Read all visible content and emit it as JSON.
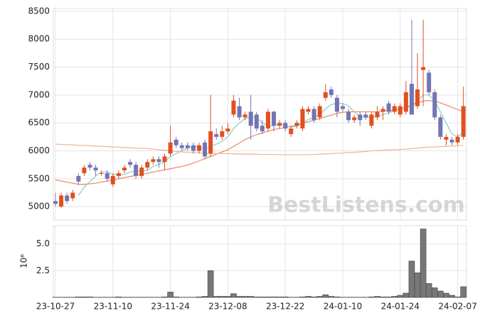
{
  "chart_data": [
    {
      "type": "candlestick",
      "up_color": "#e0501f",
      "down_color": "#7474b4",
      "ylim": [
        4760,
        8550
      ],
      "yticks": [
        5000,
        5500,
        6000,
        6500,
        7000,
        7500,
        8000,
        8500
      ],
      "grid": true,
      "watermark": "BestListens.com",
      "ohlc": [
        [
          5100,
          5250,
          5000,
          5050
        ],
        [
          5000,
          5250,
          4980,
          5200
        ],
        [
          5200,
          5250,
          5050,
          5100
        ],
        [
          5150,
          5300,
          5100,
          5250
        ],
        [
          5550,
          5600,
          5400,
          5450
        ],
        [
          5600,
          5750,
          5550,
          5700
        ],
        [
          5750,
          5800,
          5650,
          5700
        ],
        [
          5700,
          5750,
          5550,
          5650
        ],
        [
          5600,
          5650,
          5550,
          5600
        ],
        [
          5600,
          5650,
          5450,
          5500
        ],
        [
          5400,
          5600,
          5350,
          5550
        ],
        [
          5550,
          5650,
          5500,
          5600
        ],
        [
          5650,
          5750,
          5600,
          5700
        ],
        [
          5800,
          5850,
          5700,
          5750
        ],
        [
          5750,
          5800,
          5500,
          5550
        ],
        [
          5550,
          5750,
          5500,
          5700
        ],
        [
          5700,
          5850,
          5650,
          5800
        ],
        [
          5800,
          5900,
          5750,
          5850
        ],
        [
          5850,
          5900,
          5700,
          5800
        ],
        [
          5800,
          5950,
          5650,
          5900
        ],
        [
          5950,
          6450,
          5900,
          6150
        ],
        [
          6200,
          6250,
          6050,
          6100
        ],
        [
          6100,
          6150,
          6000,
          6050
        ],
        [
          6100,
          6150,
          6000,
          6050
        ],
        [
          6100,
          6150,
          5950,
          6000
        ],
        [
          6000,
          6150,
          5950,
          6100
        ],
        [
          6150,
          6200,
          5850,
          5900
        ],
        [
          5950,
          7000,
          5900,
          6350
        ],
        [
          6300,
          6400,
          6200,
          6250
        ],
        [
          6250,
          6450,
          6200,
          6350
        ],
        [
          6350,
          6500,
          6300,
          6400
        ],
        [
          6650,
          7000,
          6600,
          6900
        ],
        [
          6800,
          6950,
          6550,
          6600
        ],
        [
          6600,
          6700,
          6550,
          6650
        ],
        [
          6700,
          7000,
          6200,
          6450
        ],
        [
          6650,
          6700,
          6350,
          6400
        ],
        [
          6450,
          6550,
          6300,
          6350
        ],
        [
          6400,
          6750,
          6350,
          6700
        ],
        [
          6700,
          6720,
          6350,
          6450
        ],
        [
          6450,
          6550,
          6400,
          6500
        ],
        [
          6500,
          6550,
          6350,
          6400
        ],
        [
          6300,
          6450,
          6250,
          6400
        ],
        [
          6450,
          6550,
          6400,
          6500
        ],
        [
          6400,
          6800,
          6350,
          6750
        ],
        [
          6700,
          6800,
          6650,
          6750
        ],
        [
          6750,
          6800,
          6500,
          6550
        ],
        [
          6600,
          6850,
          6550,
          6800
        ],
        [
          6950,
          7200,
          6900,
          7050
        ],
        [
          7100,
          7150,
          6950,
          7000
        ],
        [
          6950,
          7000,
          6600,
          6700
        ],
        [
          6800,
          6850,
          6700,
          6750
        ],
        [
          6700,
          6750,
          6500,
          6550
        ],
        [
          6550,
          6650,
          6500,
          6600
        ],
        [
          6650,
          6700,
          6450,
          6550
        ],
        [
          6650,
          6700,
          6550,
          6600
        ],
        [
          6450,
          6700,
          6400,
          6650
        ],
        [
          6600,
          6800,
          6550,
          6700
        ],
        [
          6700,
          6800,
          6550,
          6750
        ],
        [
          6850,
          6900,
          6650,
          6700
        ],
        [
          6700,
          6850,
          6650,
          6800
        ],
        [
          6650,
          6850,
          6600,
          6800
        ],
        [
          6700,
          7250,
          6650,
          7050
        ],
        [
          7200,
          8350,
          6650,
          6650
        ],
        [
          6800,
          7750,
          6750,
          7100
        ],
        [
          7450,
          8350,
          6800,
          7500
        ],
        [
          7400,
          7450,
          7000,
          7050
        ],
        [
          7050,
          7100,
          6550,
          6600
        ],
        [
          6600,
          6650,
          6200,
          6250
        ],
        [
          6200,
          6300,
          6100,
          6250
        ],
        [
          6200,
          6250,
          6100,
          6150
        ],
        [
          6150,
          6300,
          6100,
          6250
        ],
        [
          6250,
          7150,
          6200,
          6800
        ]
      ],
      "lines": [
        {
          "color": "#8fd3c8",
          "values": [
            null,
            null,
            null,
            null,
            5200,
            5350,
            5450,
            5550,
            5620,
            5620,
            5580,
            5560,
            5580,
            5620,
            5640,
            5630,
            5650,
            5720,
            5760,
            5800,
            5900,
            5950,
            6000,
            6050,
            6080,
            6060,
            6030,
            6080,
            6120,
            6170,
            6250,
            6400,
            6500,
            6580,
            6600,
            6600,
            6500,
            6450,
            6450,
            6480,
            6450,
            6420,
            6440,
            6500,
            6560,
            6600,
            6650,
            6750,
            6830,
            6850,
            6850,
            6800,
            6700,
            6620,
            6600,
            6600,
            6620,
            6650,
            6680,
            6720,
            6750,
            6780,
            6800,
            6900,
            7000,
            7000,
            6900,
            6700,
            6500,
            6300,
            6250,
            6330
          ]
        },
        {
          "color": "#e8906f",
          "values": [
            5480,
            5460,
            5440,
            5420,
            5400,
            5400,
            5410,
            5420,
            5440,
            5460,
            5480,
            5500,
            5520,
            5540,
            5560,
            5580,
            5600,
            5620,
            5640,
            5660,
            5680,
            5700,
            5720,
            5750,
            5780,
            5820,
            5860,
            5900,
            5940,
            5980,
            6020,
            6080,
            6140,
            6200,
            6250,
            6290,
            6320,
            6350,
            6380,
            6400,
            6420,
            6440,
            6460,
            6490,
            6520,
            6550,
            6580,
            6610,
            6640,
            6670,
            6690,
            6700,
            6700,
            6700,
            6700,
            6700,
            6700,
            6710,
            6720,
            6730,
            6750,
            6780,
            6820,
            6860,
            6890,
            6900,
            6890,
            6860,
            6820,
            6780,
            6740,
            6700
          ]
        },
        {
          "color": "#f0b898",
          "values": [
            6120,
            6115,
            6110,
            6105,
            6100,
            6095,
            6090,
            6085,
            6080,
            6075,
            6070,
            6065,
            6060,
            6055,
            6050,
            6045,
            6040,
            6030,
            6020,
            6010,
            6000,
            5990,
            5980,
            5975,
            5970,
            5965,
            5960,
            5955,
            5950,
            5950,
            5950,
            5945,
            5945,
            5940,
            5940,
            5940,
            5935,
            5935,
            5935,
            5930,
            5930,
            5930,
            5930,
            5930,
            5930,
            5935,
            5940,
            5945,
            5950,
            5955,
            5960,
            5970,
            5975,
            5980,
            5990,
            6000,
            6005,
            6010,
            6015,
            6020,
            6025,
            6030,
            6040,
            6050,
            6060,
            6065,
            6070,
            6075,
            6080,
            6085,
            6090,
            6100
          ]
        }
      ]
    },
    {
      "type": "bar",
      "color": "#777777",
      "y_label": "10⁶",
      "ylim": [
        0,
        6.7
      ],
      "yticks": [
        2.5,
        {
          "value": 5,
          "label": "5.0"
        }
      ],
      "grid": true,
      "categories": [
        "23-10-27",
        null,
        null,
        null,
        null,
        null,
        null,
        null,
        null,
        null,
        "23-11-10",
        null,
        null,
        null,
        null,
        null,
        null,
        null,
        null,
        null,
        "23-11-24",
        null,
        null,
        null,
        null,
        null,
        null,
        null,
        null,
        null,
        "23-12-08",
        null,
        null,
        null,
        null,
        null,
        null,
        null,
        null,
        null,
        "23-12-22",
        null,
        null,
        null,
        null,
        null,
        null,
        null,
        null,
        null,
        "24-01-10",
        null,
        null,
        null,
        null,
        null,
        null,
        null,
        null,
        null,
        "24-01-24",
        null,
        null,
        null,
        null,
        null,
        null,
        null,
        null,
        null,
        "24-02-07",
        null
      ],
      "values": [
        0.02,
        0.02,
        0.02,
        0.02,
        0.05,
        0.05,
        0.05,
        0.02,
        0.02,
        0.02,
        0.02,
        0.05,
        0.02,
        0.02,
        0.02,
        0.02,
        0.02,
        0.02,
        0.02,
        0.05,
        0.5,
        0.05,
        0.02,
        0.02,
        0.02,
        0.05,
        0.1,
        2.5,
        0.1,
        0.1,
        0.1,
        0.35,
        0.1,
        0.1,
        0.1,
        0.05,
        0.05,
        0.05,
        0.05,
        0.05,
        0.05,
        0.02,
        0.02,
        0.05,
        0.1,
        0.05,
        0.1,
        0.25,
        0.1,
        0.05,
        0.02,
        0.02,
        0.02,
        0.02,
        0.02,
        0.05,
        0.1,
        0.05,
        0.05,
        0.1,
        0.2,
        0.4,
        3.4,
        2.3,
        6.4,
        1.3,
        0.9,
        0.6,
        0.4,
        0.2,
        0.05,
        1.0
      ]
    }
  ]
}
